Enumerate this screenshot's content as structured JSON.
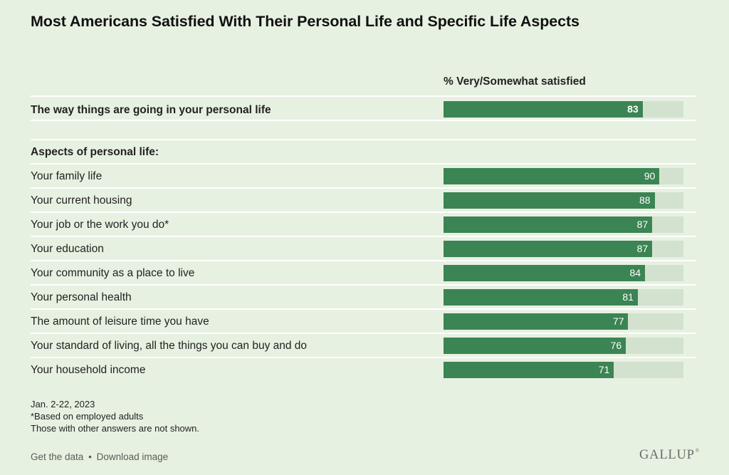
{
  "title": "Most Americans Satisfied With Their Personal Life and Specific Life Aspects",
  "column_header": "% Very/Somewhat satisfied",
  "section_label": "Aspects of personal life:",
  "chart_data": {
    "type": "bar",
    "orientation": "horizontal",
    "title": "Most Americans Satisfied With Their Personal Life and Specific Life Aspects",
    "value_label": "% Very/Somewhat satisfied",
    "xlim": [
      0,
      100
    ],
    "bar_color": "#3b8453",
    "track_color": "#d3e2ce",
    "overall": {
      "category": "The way things are going in your personal life",
      "value": 83
    },
    "categories": [
      "Your family life",
      "Your current housing",
      "Your job or the work you do*",
      "Your education",
      "Your community as a place to live",
      "Your personal health",
      "The amount of leisure time you have",
      "Your standard of living, all the things you can buy and do",
      "Your household income"
    ],
    "values": [
      90,
      88,
      87,
      87,
      84,
      81,
      77,
      76,
      71
    ]
  },
  "footnotes": {
    "date": "Jan. 2-22, 2023",
    "note1": "*Based on employed adults",
    "note2": "Those with other answers are not shown."
  },
  "links": {
    "get_data": "Get the data",
    "separator": "•",
    "download": "Download image"
  },
  "logo": {
    "text": "GALLUP",
    "mark": "®"
  }
}
